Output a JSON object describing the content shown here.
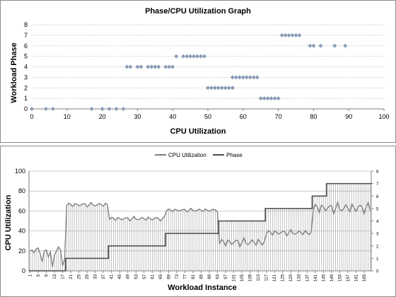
{
  "chart_data": [
    {
      "type": "scatter",
      "title": "Phase/CPU Utilization Graph",
      "xlabel": "CPU Utilization",
      "ylabel": "Workload Phase",
      "xlim": [
        0,
        100
      ],
      "ylim": [
        0,
        8
      ],
      "xticks": [
        "0",
        "10",
        "20",
        "30",
        "40",
        "50",
        "60",
        "70",
        "80",
        "90",
        "100"
      ],
      "yticks": [
        "0",
        "1",
        "2",
        "3",
        "4",
        "5",
        "6",
        "7",
        "8"
      ],
      "grid": true,
      "marker_color": "#8a9bb5",
      "points": [
        [
          0,
          0
        ],
        [
          4,
          0
        ],
        [
          6,
          0
        ],
        [
          17,
          0
        ],
        [
          20,
          0
        ],
        [
          22,
          0
        ],
        [
          24,
          0
        ],
        [
          26,
          0
        ],
        [
          65,
          1
        ],
        [
          66,
          1
        ],
        [
          67,
          1
        ],
        [
          68,
          1
        ],
        [
          69,
          1
        ],
        [
          70,
          1
        ],
        [
          50,
          2
        ],
        [
          51,
          2
        ],
        [
          52,
          2
        ],
        [
          53,
          2
        ],
        [
          54,
          2
        ],
        [
          55,
          2
        ],
        [
          56,
          2
        ],
        [
          57,
          2
        ],
        [
          57,
          3
        ],
        [
          58,
          3
        ],
        [
          59,
          3
        ],
        [
          60,
          3
        ],
        [
          61,
          3
        ],
        [
          62,
          3
        ],
        [
          63,
          3
        ],
        [
          64,
          3
        ],
        [
          27,
          4
        ],
        [
          28,
          4
        ],
        [
          30,
          4
        ],
        [
          31,
          4
        ],
        [
          33,
          4
        ],
        [
          34,
          4
        ],
        [
          35,
          4
        ],
        [
          36,
          4
        ],
        [
          38,
          4
        ],
        [
          39,
          4
        ],
        [
          40,
          4
        ],
        [
          41,
          5
        ],
        [
          43,
          5
        ],
        [
          44,
          5
        ],
        [
          45,
          5
        ],
        [
          46,
          5
        ],
        [
          47,
          5
        ],
        [
          48,
          5
        ],
        [
          49,
          5
        ],
        [
          79,
          6
        ],
        [
          80,
          6
        ],
        [
          82,
          6
        ],
        [
          86,
          6
        ],
        [
          89,
          6
        ],
        [
          71,
          7
        ],
        [
          72,
          7
        ],
        [
          73,
          7
        ],
        [
          74,
          7
        ],
        [
          75,
          7
        ],
        [
          76,
          7
        ]
      ]
    },
    {
      "type": "line",
      "title": "",
      "xlabel": "Workload Instance",
      "ylabel": "CPU Utilization",
      "x_count": 168,
      "xticks": [
        "1",
        "5",
        "9",
        "13",
        "17",
        "21",
        "25",
        "29",
        "33",
        "37",
        "41",
        "45",
        "49",
        "53",
        "57",
        "61",
        "65",
        "69",
        "73",
        "77",
        "81",
        "85",
        "89",
        "93",
        "97",
        "101",
        "105",
        "109",
        "113",
        "117",
        "121",
        "125",
        "129",
        "133",
        "137",
        "141",
        "145",
        "149",
        "153",
        "157",
        "161",
        "165"
      ],
      "ylim": [
        0,
        100
      ],
      "yticks": [
        "0",
        "20",
        "40",
        "60",
        "80",
        "100"
      ],
      "y2lim": [
        0,
        8
      ],
      "y2ticks": [
        "0",
        "1",
        "2",
        "3",
        "4",
        "5",
        "6",
        "7",
        "8"
      ],
      "legend_position": "top",
      "grid": true,
      "series": [
        {
          "name": "CPU Utilization",
          "axis": "primary",
          "color": "#7a7a7a",
          "segments": [
            {
              "start": 1,
              "end": 18,
              "values": [
                20,
                21,
                18,
                22,
                23,
                17,
                9,
                20,
                21,
                14,
                19,
                4,
                16,
                20,
                24,
                21,
                5,
                12
              ]
            },
            {
              "start": 19,
              "end": 39,
              "low": 64,
              "high": 69
            },
            {
              "start": 40,
              "end": 67,
              "low": 50,
              "high": 55
            },
            {
              "start": 68,
              "end": 93,
              "low": 59,
              "high": 63
            },
            {
              "start": 94,
              "end": 116,
              "low": 24,
              "high": 34
            },
            {
              "start": 117,
              "end": 139,
              "low": 35,
              "high": 42
            },
            {
              "start": 140,
              "end": 168,
              "low": 57,
              "high": 70
            }
          ]
        },
        {
          "name": "Phase",
          "axis": "secondary",
          "color": "#4a4a4a",
          "steps": [
            {
              "start": 1,
              "end": 18,
              "value": 0
            },
            {
              "start": 19,
              "end": 39,
              "value": 1
            },
            {
              "start": 40,
              "end": 67,
              "value": 2
            },
            {
              "start": 68,
              "end": 93,
              "value": 3
            },
            {
              "start": 94,
              "end": 116,
              "value": 4
            },
            {
              "start": 117,
              "end": 139,
              "value": 5
            },
            {
              "start": 140,
              "end": 146,
              "value": 6
            },
            {
              "start": 147,
              "end": 168,
              "value": 7
            }
          ]
        }
      ]
    }
  ]
}
